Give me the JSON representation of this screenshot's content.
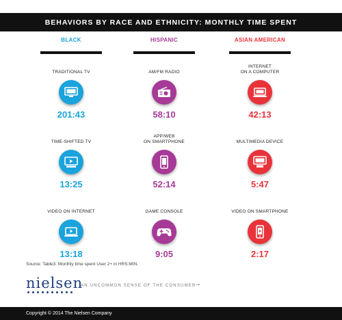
{
  "title": "BEHAVIORS BY RACE AND ETHNICITY: MONTHLY TIME SPENT",
  "columns": [
    {
      "header": "BLACK",
      "color": "#1aa3dc",
      "items": [
        {
          "label": "TRADITIONAL TV",
          "value": "201:43",
          "icon": "tv-icon"
        },
        {
          "label": "TIME-SHIFTED TV",
          "value": "13:25",
          "icon": "dvr-tv-icon"
        },
        {
          "label": "VIDEO ON INTERNET",
          "value": "13:18",
          "icon": "laptop-video-icon"
        }
      ]
    },
    {
      "header": "HISPANIC",
      "color": "#a63a96",
      "items": [
        {
          "label": "AM/FM RADIO",
          "value": "58:10",
          "icon": "radio-icon"
        },
        {
          "label": "APP/WEB\nON SMARTPHONE",
          "value": "52:14",
          "icon": "smartphone-icon"
        },
        {
          "label": "GAME CONSOLE",
          "value": "9:05",
          "icon": "gamepad-icon"
        }
      ]
    },
    {
      "header": "ASIAN AMERICAN",
      "color": "#e8333a",
      "items": [
        {
          "label": "INTERNET\nON A COMPUTER",
          "value": "42:13",
          "icon": "laptop-icon"
        },
        {
          "label": "MULTIMEDIA DEVICE",
          "value": "5:47",
          "icon": "multimedia-device-icon"
        },
        {
          "label": "VIDEO ON SMARTPHONE",
          "value": "2:17",
          "icon": "smartphone-video-icon"
        }
      ]
    }
  ],
  "source": "Source: Table3. Monthly time spent User 2+ in HRS:MIN.",
  "logo": "nielsen",
  "tagline": "AN UNCOMMON SENSE OF THE CONSUMER™",
  "footer": "Copyright © 2014 The Nielsen Company"
}
